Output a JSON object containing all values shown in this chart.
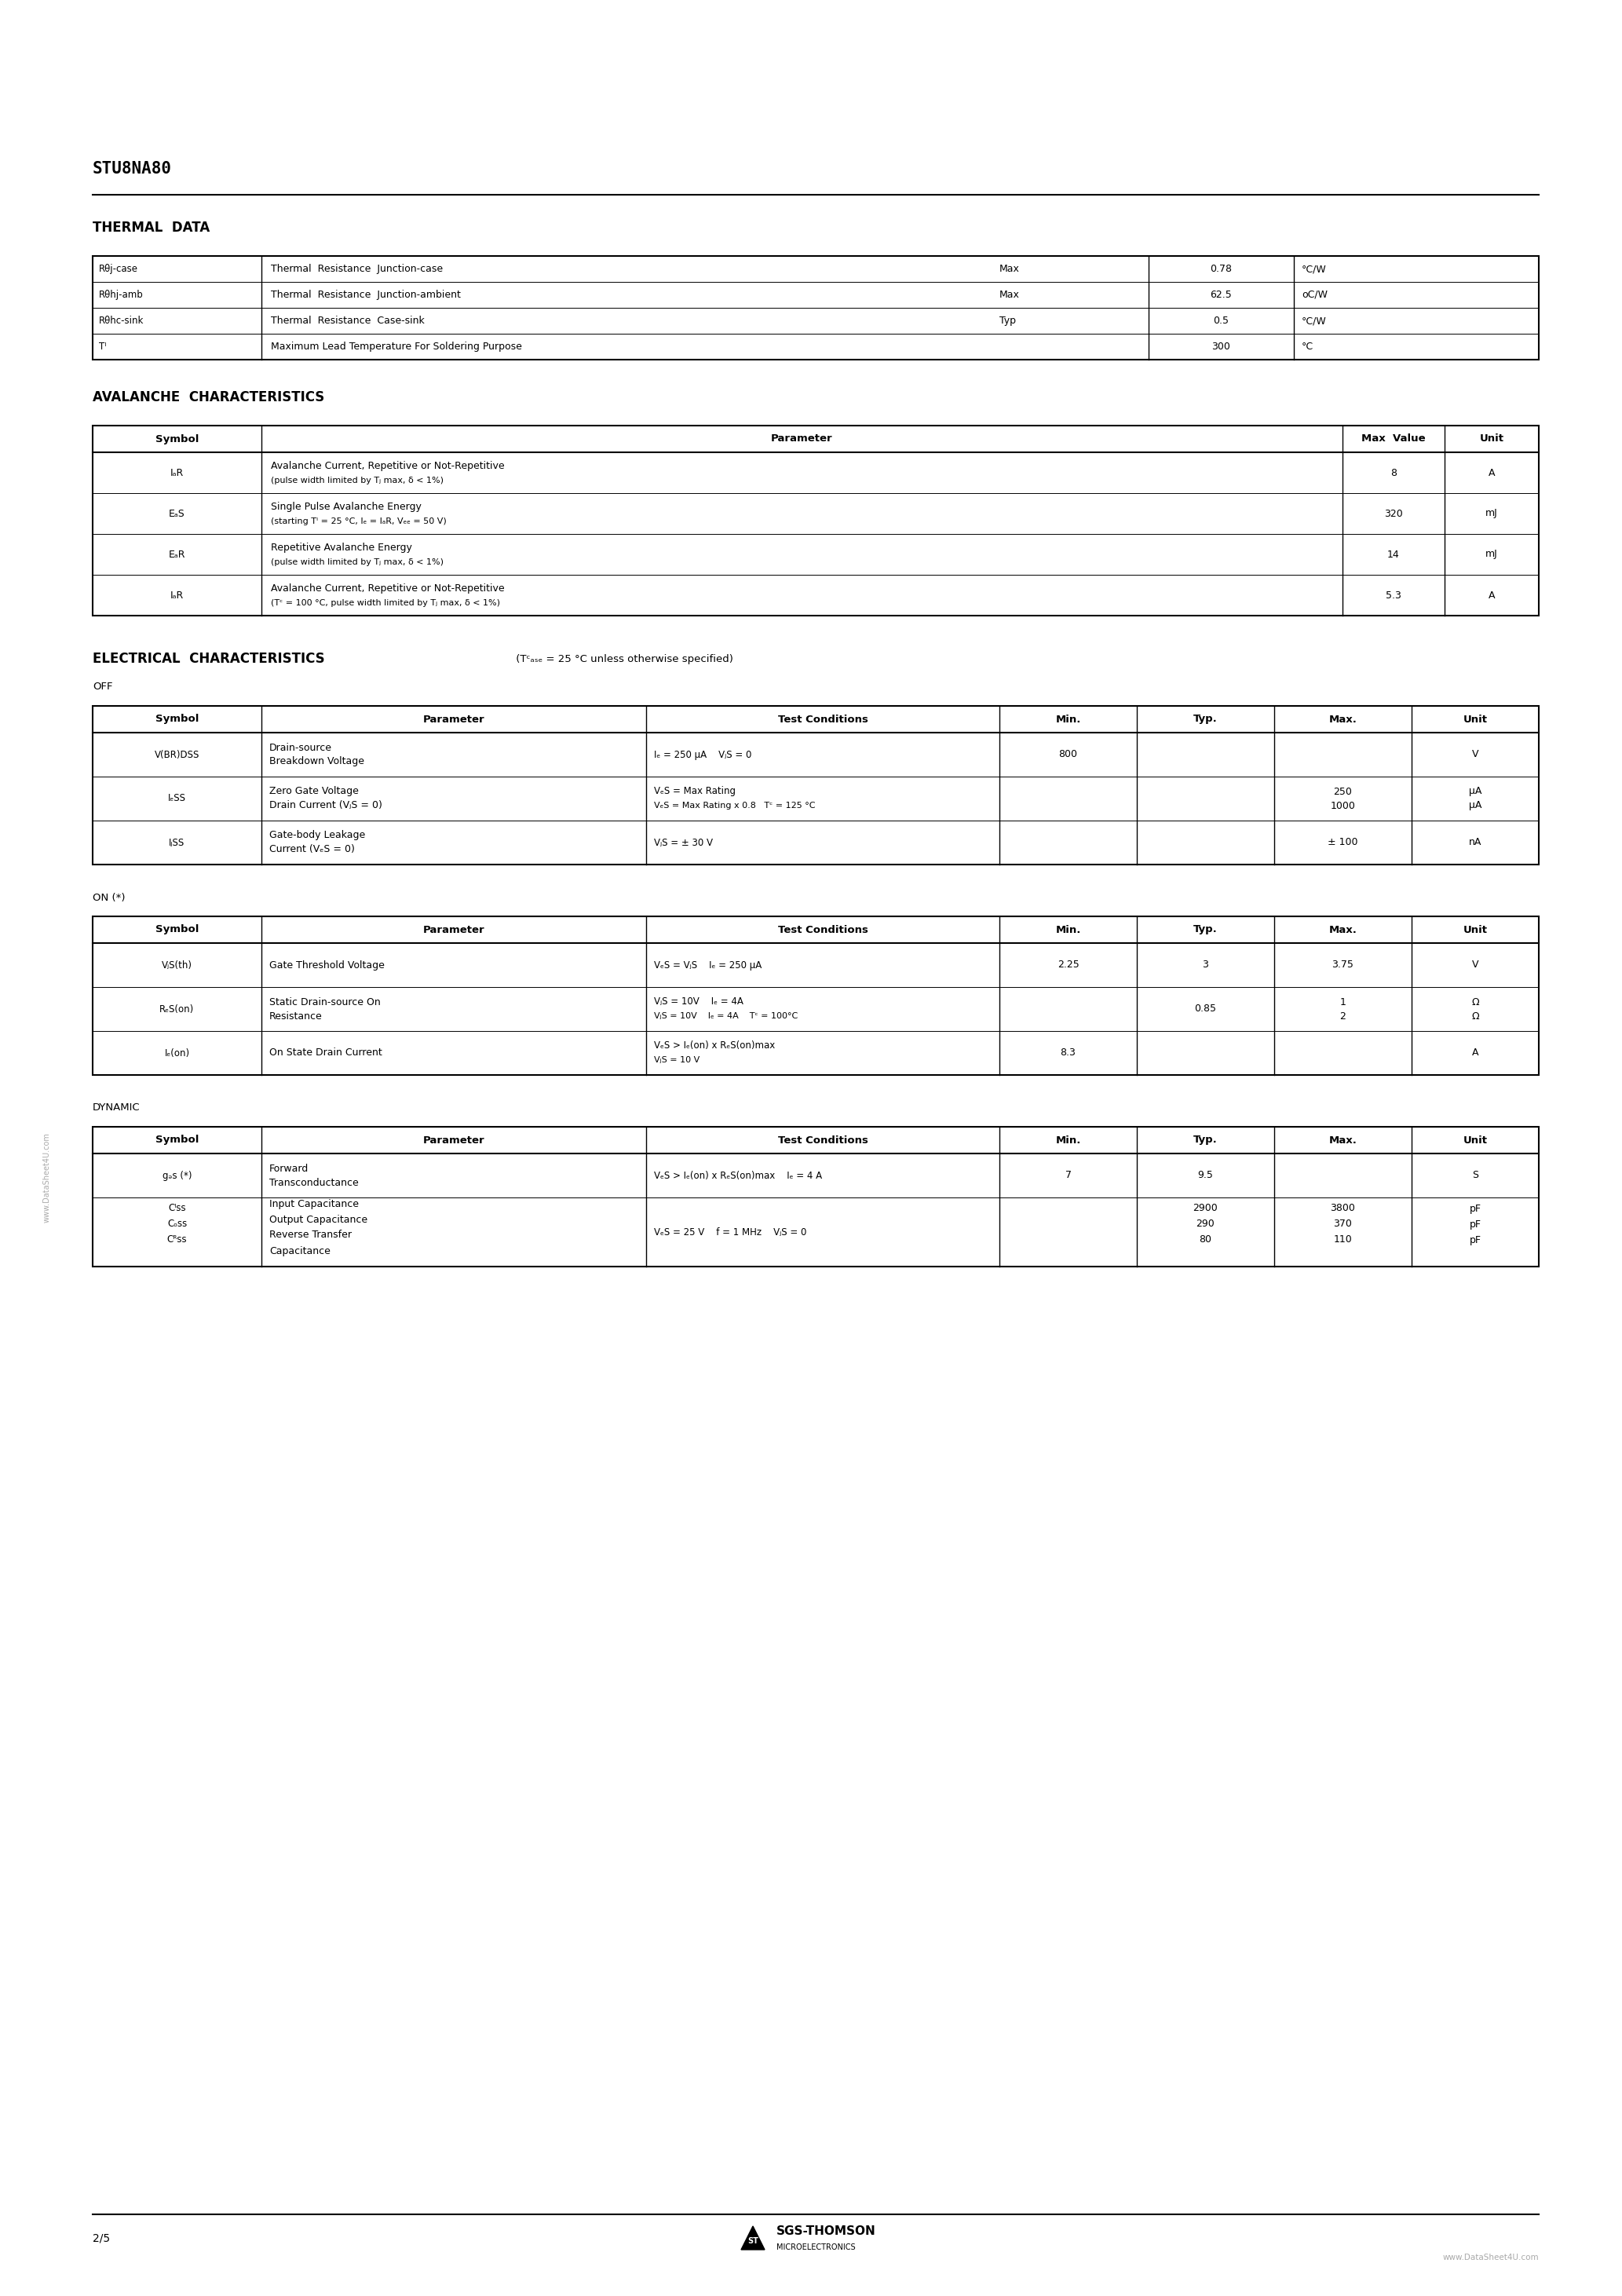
{
  "title": "STU8NA80",
  "page": "2/5",
  "watermark_left": "www.DataSheet4U.com",
  "watermark_right": "www.DataSheet4U.com",
  "background_color": "#ffffff",
  "text_color": "#000000",
  "thermal_heading": "THERMAL  DATA",
  "thermal_rows": [
    {
      "symbol": "Rθj-case",
      "parameter": "Thermal  Resistance  Junction-case",
      "cond": "Max",
      "value": "0.78",
      "unit": "°C/W"
    },
    {
      "symbol": "Rθhj-amb",
      "parameter": "Thermal  Resistance  Junction-ambient",
      "cond": "Max",
      "value": "62.5",
      "unit": "oC/W"
    },
    {
      "symbol": "Rθhc-sink",
      "parameter": "Thermal  Resistance  Case-sink",
      "cond": "Typ",
      "value": "0.5",
      "unit": "°C/W"
    },
    {
      "symbol": "Tᴵ",
      "parameter": "Maximum Lead Temperature For Soldering Purpose",
      "cond": "",
      "value": "300",
      "unit": "°C"
    }
  ],
  "avalanche_heading": "AVALANCHE  CHARACTERISTICS",
  "avalanche_headers": [
    "Symbol",
    "Parameter",
    "Max  Value",
    "Unit"
  ],
  "avalanche_rows": [
    {
      "symbol": "IₐR",
      "param1": "Avalanche Current, Repetitive or Not-Repetitive",
      "param2": "(pulse width limited by Tⱼ max, δ < 1%)",
      "value": "8",
      "unit": "A"
    },
    {
      "symbol": "EₐS",
      "param1": "Single Pulse Avalanche Energy",
      "param2": "(starting Tᴵ = 25 °C, Iₑ = IₐR, Vₑₑ = 50 V)",
      "value": "320",
      "unit": "mJ"
    },
    {
      "symbol": "EₐR",
      "param1": "Repetitive Avalanche Energy",
      "param2": "(pulse width limited by Tⱼ max, δ < 1%)",
      "value": "14",
      "unit": "mJ"
    },
    {
      "symbol": "IₐR",
      "param1": "Avalanche Current, Repetitive or Not-Repetitive",
      "param2": "(Tᶜ = 100 °C, pulse width limited by Tⱼ max, δ < 1%)",
      "value": "5.3",
      "unit": "A"
    }
  ],
  "elec_heading": "ELECTRICAL  CHARACTERISTICS",
  "elec_suffix": " (Tᶜₐₛₑ = 25 °C unless otherwise specified)",
  "elec_headers": [
    "Symbol",
    "Parameter",
    "Test Conditions",
    "Min.",
    "Typ.",
    "Max.",
    "Unit"
  ],
  "off_label": "OFF",
  "off_rows": [
    {
      "sym": "V(BR)DSS",
      "p1": "Drain-source",
      "p2": "Breakdown Voltage",
      "c1": "Iₑ = 250 μA    VⱼS = 0",
      "c2": "",
      "min": "800",
      "typ": "",
      "max": "",
      "u1": "V",
      "u2": ""
    },
    {
      "sym": "IₑSS",
      "p1": "Zero Gate Voltage",
      "p2": "Drain Current (VⱼS = 0)",
      "c1": "VₑS = Max Rating",
      "c2": "VₑS = Max Rating x 0.8   Tᶜ = 125 °C",
      "min": "",
      "typ": "",
      "max": "250",
      "max2": "1000",
      "u1": "μA",
      "u2": "μA"
    },
    {
      "sym": "IⱼSS",
      "p1": "Gate-body Leakage",
      "p2": "Current (VₑS = 0)",
      "c1": "VⱼS = ± 30 V",
      "c2": "",
      "min": "",
      "typ": "",
      "max": "± 100",
      "u1": "nA",
      "u2": ""
    }
  ],
  "on_label": "ON (*)",
  "on_rows": [
    {
      "sym": "VⱼS(th)",
      "p1": "Gate Threshold Voltage",
      "p2": "",
      "c1": "VₑS = VⱼS    Iₑ = 250 μA",
      "c2": "",
      "min": "2.25",
      "typ": "3",
      "max": "3.75",
      "max2": "",
      "u1": "V",
      "u2": ""
    },
    {
      "sym": "RₑS(on)",
      "p1": "Static Drain-source On",
      "p2": "Resistance",
      "c1": "VⱼS = 10V    Iₑ = 4A",
      "c2": "VⱼS = 10V    Iₑ = 4A    Tᶜ = 100°C",
      "min": "",
      "typ": "0.85",
      "max": "1",
      "max2": "2",
      "u1": "Ω",
      "u2": "Ω"
    },
    {
      "sym": "Iₑ(on)",
      "p1": "On State Drain Current",
      "p2": "",
      "c1": "VₑS > Iₑ(on) x RₑS(on)max",
      "c2": "VⱼS = 10 V",
      "min": "8.3",
      "typ": "",
      "max": "",
      "max2": "",
      "u1": "A",
      "u2": ""
    }
  ],
  "dyn_label": "DYNAMIC",
  "dyn_rows": [
    {
      "sym": "gₔs (*)",
      "p1": "Forward",
      "p2": "Transconductance",
      "c1": "VₑS > Iₑ(on) x RₑS(on)max    Iₑ = 4 A",
      "c2": "",
      "min": "7",
      "typ": "9.5",
      "max": "",
      "u1": "S",
      "syms": [
        "gₔs (*)"
      ],
      "typ_vals": [
        "9.5"
      ],
      "max_vals": [
        ""
      ],
      "units": [
        "S"
      ]
    },
    {
      "sym": "Cᴵss",
      "p1": "Input Capacitance",
      "p2": "Output Capacitance",
      "p3": "Reverse Transfer",
      "p4": "Capacitance",
      "c1": "VₑS = 25 V    f = 1 MHz    VⱼS = 0",
      "c2": "",
      "min": "",
      "typ": "2900",
      "max": "3800",
      "u1": "pF",
      "syms": [
        "Cᴵss",
        "Cₒss",
        "Cᴿss"
      ],
      "typ_vals": [
        "2900",
        "290",
        "80"
      ],
      "max_vals": [
        "3800",
        "370",
        "110"
      ],
      "units": [
        "pF",
        "pF",
        "pF"
      ]
    }
  ]
}
